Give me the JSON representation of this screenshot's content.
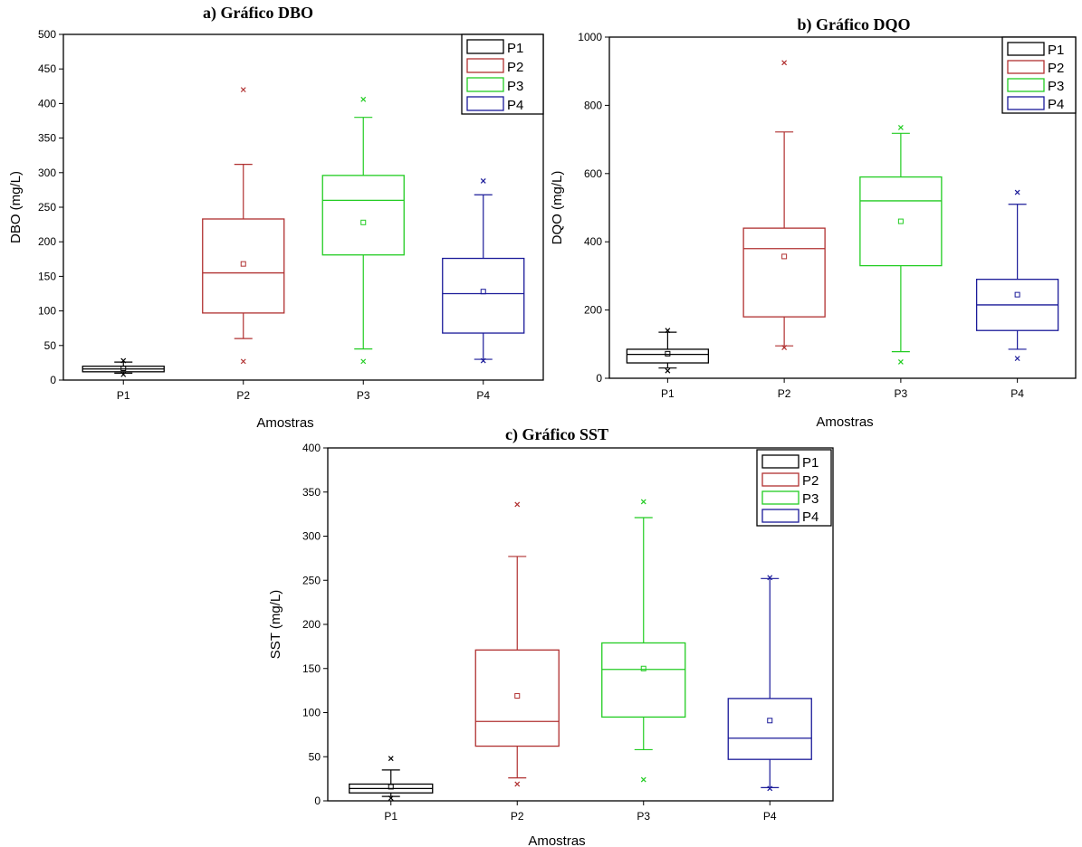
{
  "chart_data": [
    {
      "type": "boxplot",
      "title": "a) Gráfico DBO",
      "xlabel": "Amostras",
      "ylabel": "DBO (mg/L)",
      "ylim": [
        0,
        500
      ],
      "yticks": [
        0,
        50,
        100,
        150,
        200,
        250,
        300,
        350,
        400,
        450,
        500
      ],
      "legend_position": "top-right",
      "categories": [
        "P1",
        "P2",
        "P3",
        "P4"
      ],
      "series": [
        {
          "name": "P1",
          "color": "#000000",
          "whisker_low": 10,
          "q1": 12,
          "median": 16,
          "q3": 20,
          "whisker_high": 26,
          "mean": 17,
          "outliers_low": [
            8
          ],
          "outliers_high": [
            28
          ]
        },
        {
          "name": "P2",
          "color": "#b03030",
          "whisker_low": 60,
          "q1": 97,
          "median": 155,
          "q3": 233,
          "whisker_high": 312,
          "mean": 168,
          "outliers_low": [
            27
          ],
          "outliers_high": [
            420
          ]
        },
        {
          "name": "P3",
          "color": "#22cc22",
          "whisker_low": 45,
          "q1": 181,
          "median": 260,
          "q3": 296,
          "whisker_high": 380,
          "mean": 228,
          "outliers_low": [
            27
          ],
          "outliers_high": [
            406
          ]
        },
        {
          "name": "P4",
          "color": "#1a1a99",
          "whisker_low": 30,
          "q1": 68,
          "median": 125,
          "q3": 176,
          "whisker_high": 268,
          "mean": 128,
          "outliers_low": [
            28
          ],
          "outliers_high": [
            288
          ]
        }
      ]
    },
    {
      "type": "boxplot",
      "title": "b) Gráfico DQO",
      "xlabel": "Amostras",
      "ylabel": "DQO (mg/L)",
      "ylim": [
        0,
        1000
      ],
      "yticks": [
        0,
        200,
        400,
        600,
        800,
        1000
      ],
      "legend_position": "top-right",
      "categories": [
        "P1",
        "P2",
        "P3",
        "P4"
      ],
      "series": [
        {
          "name": "P1",
          "color": "#000000",
          "whisker_low": 30,
          "q1": 45,
          "median": 70,
          "q3": 85,
          "whisker_high": 135,
          "mean": 72,
          "outliers_low": [
            22
          ],
          "outliers_high": [
            140
          ]
        },
        {
          "name": "P2",
          "color": "#b03030",
          "whisker_low": 95,
          "q1": 180,
          "median": 380,
          "q3": 440,
          "whisker_high": 722,
          "mean": 357,
          "outliers_low": [
            90
          ],
          "outliers_high": [
            925
          ]
        },
        {
          "name": "P3",
          "color": "#22cc22",
          "whisker_low": 78,
          "q1": 330,
          "median": 520,
          "q3": 590,
          "whisker_high": 718,
          "mean": 460,
          "outliers_low": [
            48
          ],
          "outliers_high": [
            735
          ]
        },
        {
          "name": "P4",
          "color": "#1a1a99",
          "whisker_low": 85,
          "q1": 140,
          "median": 215,
          "q3": 290,
          "whisker_high": 510,
          "mean": 245,
          "outliers_low": [
            58
          ],
          "outliers_high": [
            545
          ]
        }
      ]
    },
    {
      "type": "boxplot",
      "title": "c) Gráfico SST",
      "xlabel": "Amostras",
      "ylabel": "SST (mg/L)",
      "ylim": [
        0,
        400
      ],
      "yticks": [
        0,
        50,
        100,
        150,
        200,
        250,
        300,
        350,
        400
      ],
      "legend_position": "top-right",
      "categories": [
        "P1",
        "P2",
        "P3",
        "P4"
      ],
      "series": [
        {
          "name": "P1",
          "color": "#000000",
          "whisker_low": 5,
          "q1": 9,
          "median": 14,
          "q3": 19,
          "whisker_high": 35,
          "mean": 16,
          "outliers_low": [
            3
          ],
          "outliers_high": [
            48
          ]
        },
        {
          "name": "P2",
          "color": "#b03030",
          "whisker_low": 26,
          "q1": 62,
          "median": 90,
          "q3": 171,
          "whisker_high": 277,
          "mean": 119,
          "outliers_low": [
            19
          ],
          "outliers_high": [
            336
          ]
        },
        {
          "name": "P3",
          "color": "#22cc22",
          "whisker_low": 58,
          "q1": 95,
          "median": 149,
          "q3": 179,
          "whisker_high": 321,
          "mean": 150,
          "outliers_low": [
            24
          ],
          "outliers_high": [
            339
          ]
        },
        {
          "name": "P4",
          "color": "#1a1a99",
          "whisker_low": 15,
          "q1": 47,
          "median": 71,
          "q3": 116,
          "whisker_high": 252,
          "mean": 91,
          "outliers_low": [
            14
          ],
          "outliers_high": [
            253
          ]
        }
      ]
    }
  ]
}
